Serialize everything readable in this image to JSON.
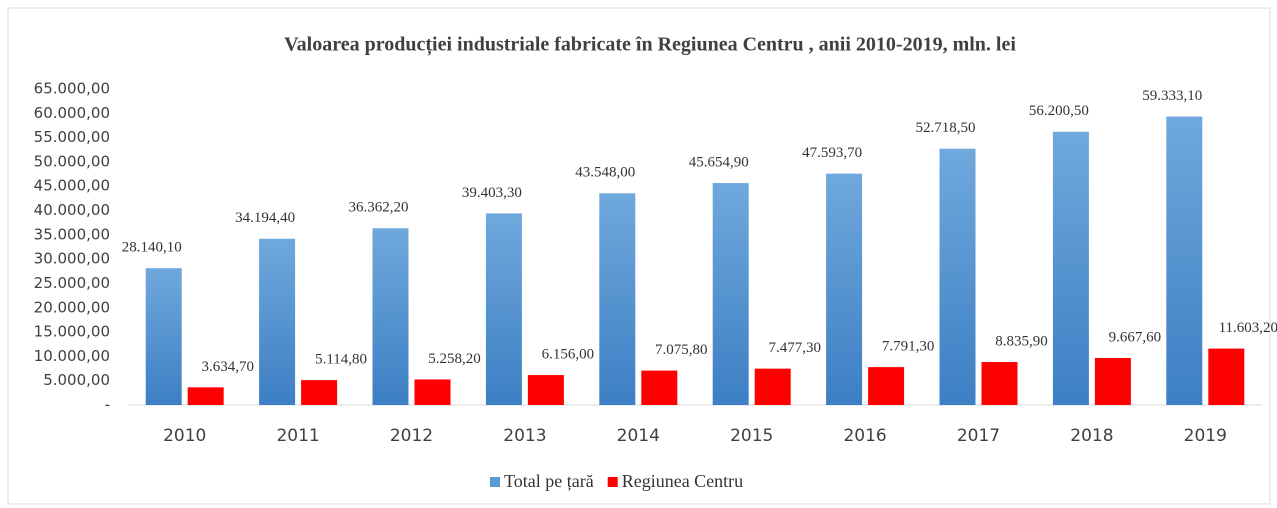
{
  "chart_data": {
    "type": "bar",
    "title": "Valoarea producției industriale  fabricate în Regiunea Centru , anii 2010-2019, mln. lei",
    "categories": [
      "2010",
      "2011",
      "2012",
      "2013",
      "2014",
      "2015",
      "2016",
      "2017",
      "2018",
      "2019"
    ],
    "series": [
      {
        "name": "Total pe țară",
        "color": "#5b9bd5",
        "values": [
          28140.1,
          34194.4,
          36362.2,
          39403.3,
          43548.0,
          45654.9,
          47593.7,
          52718.5,
          56200.5,
          59333.1
        ],
        "value_labels": [
          "28.140,10",
          "34.194,40",
          "36.362,20",
          "39.403,30",
          "43.548,00",
          "45.654,90",
          "47.593,70",
          "52.718,50",
          "56.200,50",
          "59.333,10"
        ]
      },
      {
        "name": "Regiunea Centru",
        "color": "#ff0000",
        "values": [
          3634.7,
          5114.8,
          5258.2,
          6156.0,
          7075.8,
          7477.3,
          7791.3,
          8835.9,
          9667.6,
          11603.2
        ],
        "value_labels": [
          "3.634,70",
          "5.114,80",
          "5.258,20",
          "6.156,00",
          "7.075,80",
          "7.477,30",
          "7.791,30",
          "8.835,90",
          "9.667,60",
          "11.603,20"
        ]
      }
    ],
    "ylim": [
      0,
      65000
    ],
    "yticks": [
      {
        "value": 0,
        "label": "-"
      },
      {
        "value": 5000,
        "label": "5.000,00"
      },
      {
        "value": 10000,
        "label": "10.000,00"
      },
      {
        "value": 15000,
        "label": "15.000,00"
      },
      {
        "value": 20000,
        "label": "20.000,00"
      },
      {
        "value": 25000,
        "label": "25.000,00"
      },
      {
        "value": 30000,
        "label": "30.000,00"
      },
      {
        "value": 35000,
        "label": "35.000,00"
      },
      {
        "value": 40000,
        "label": "40.000,00"
      },
      {
        "value": 45000,
        "label": "45.000,00"
      },
      {
        "value": 50000,
        "label": "50.000,00"
      },
      {
        "value": 55000,
        "label": "55.000,00"
      },
      {
        "value": 60000,
        "label": "60.000,00"
      },
      {
        "value": 65000,
        "label": "65.000,00"
      }
    ],
    "grid": false,
    "legend": "bottom"
  }
}
